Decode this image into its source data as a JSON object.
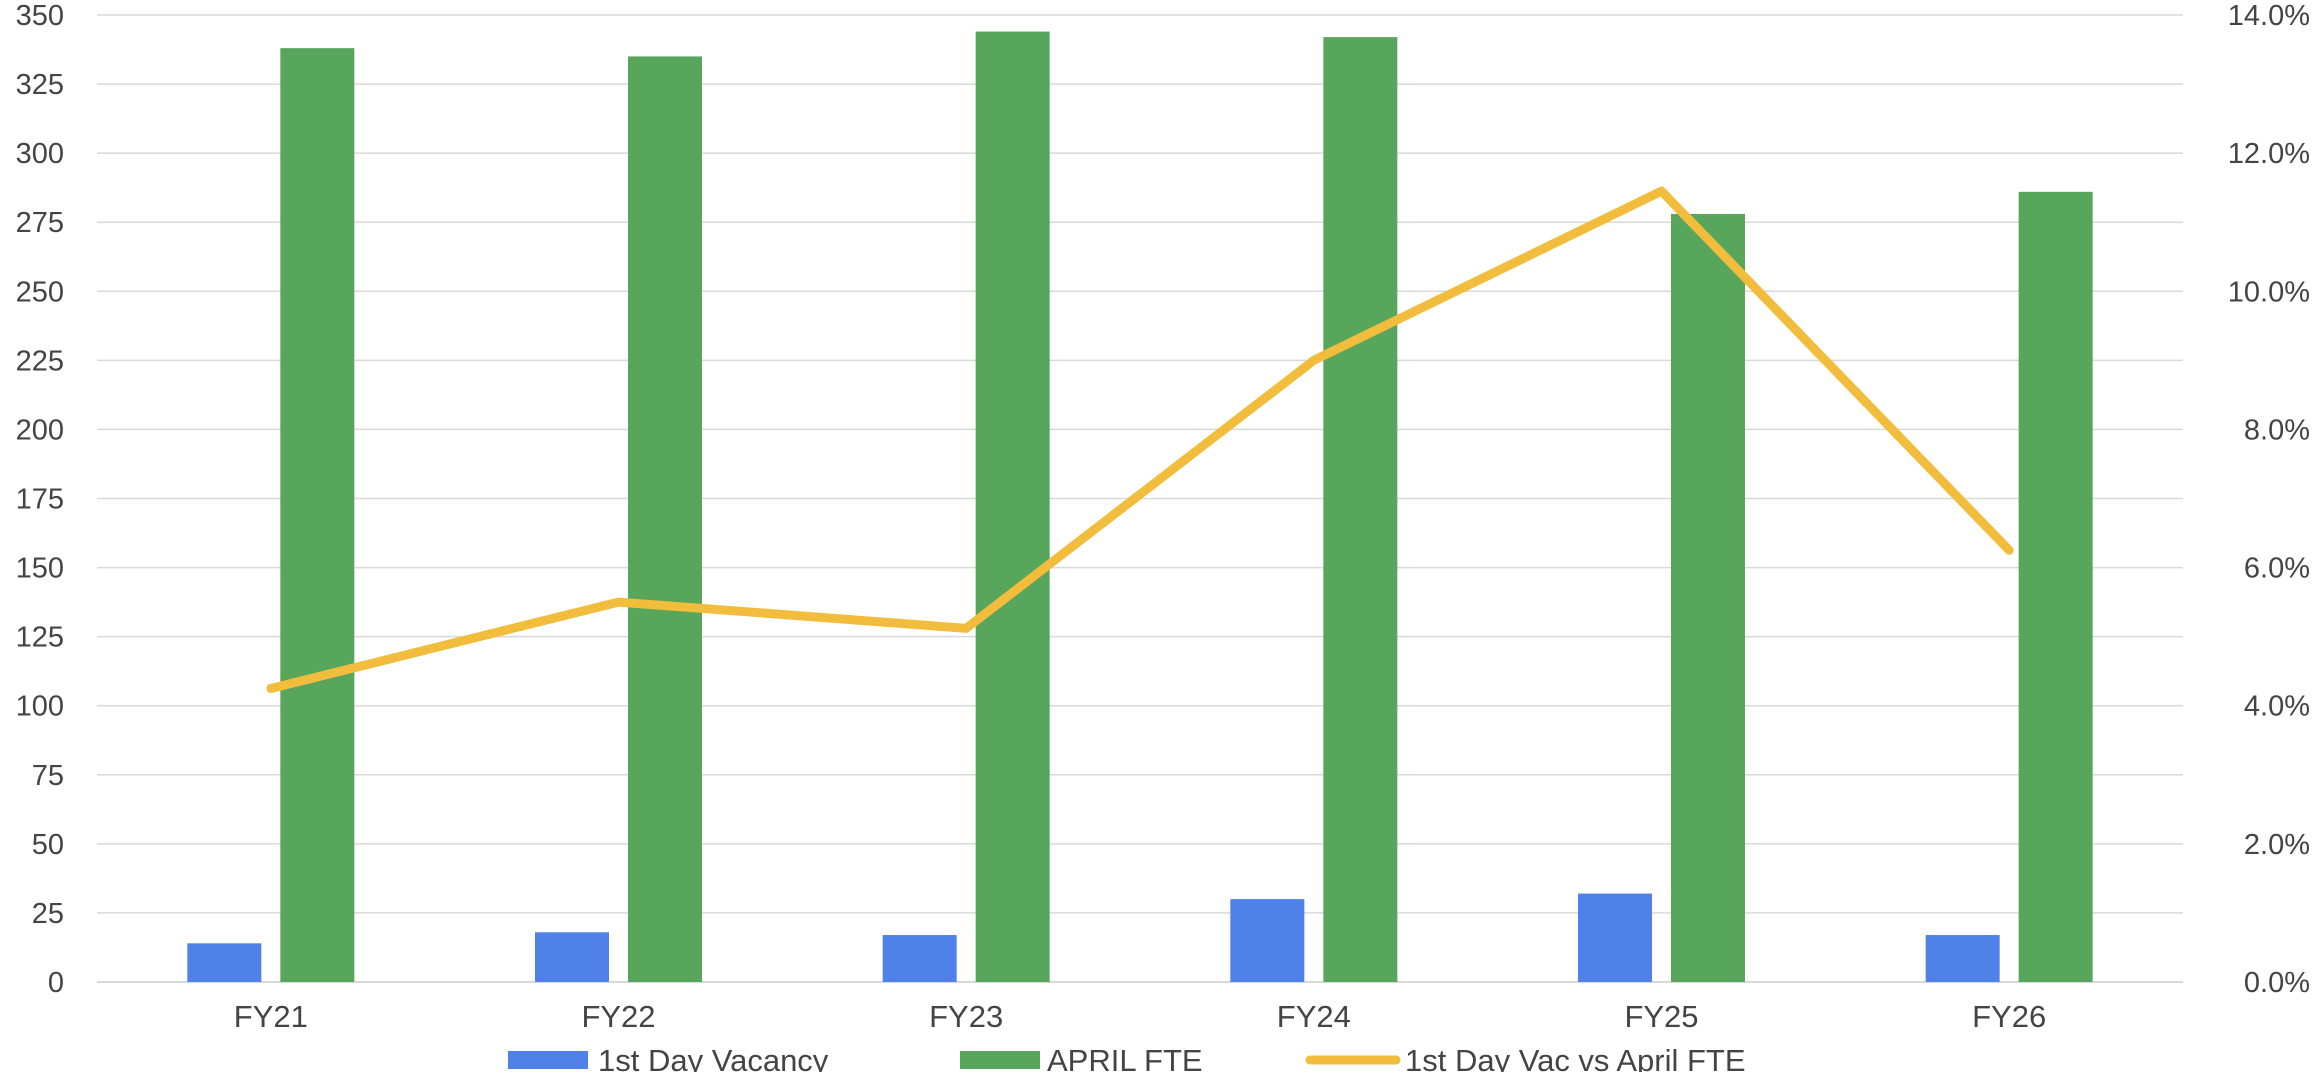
{
  "chart_data": {
    "type": "bar",
    "categories": [
      "FY21",
      "FY22",
      "FY23",
      "FY24",
      "FY25",
      "FY26"
    ],
    "series": [
      {
        "name": "1st Day Vacancy",
        "kind": "bar",
        "axis": "left",
        "color": "#4f81e8",
        "values": [
          14,
          18,
          17,
          30,
          32,
          17
        ]
      },
      {
        "name": "APRIL FTE",
        "kind": "bar",
        "axis": "left",
        "color": "#58a55c",
        "values": [
          338,
          335,
          344,
          342,
          278,
          286
        ]
      },
      {
        "name": "1st Day Vac vs April FTE",
        "kind": "line",
        "axis": "right",
        "color": "#f2bd3c",
        "values": [
          0.0425,
          0.055,
          0.0512,
          0.09,
          0.1145,
          0.0625
        ]
      }
    ],
    "y_left": {
      "min": 0,
      "max": 350,
      "step": 25,
      "ticks": [
        "0",
        "25",
        "50",
        "75",
        "100",
        "125",
        "150",
        "175",
        "200",
        "225",
        "250",
        "275",
        "300",
        "325",
        "350"
      ]
    },
    "y_right": {
      "min": 0,
      "max": 0.14,
      "step": 0.02,
      "ticks": [
        "0.0%",
        "2.0%",
        "4.0%",
        "6.0%",
        "8.0%",
        "10.0%",
        "12.0%",
        "14.0%"
      ]
    },
    "grid": true,
    "gridlines_color": "#d9d9d9",
    "legend_position": "bottom"
  }
}
